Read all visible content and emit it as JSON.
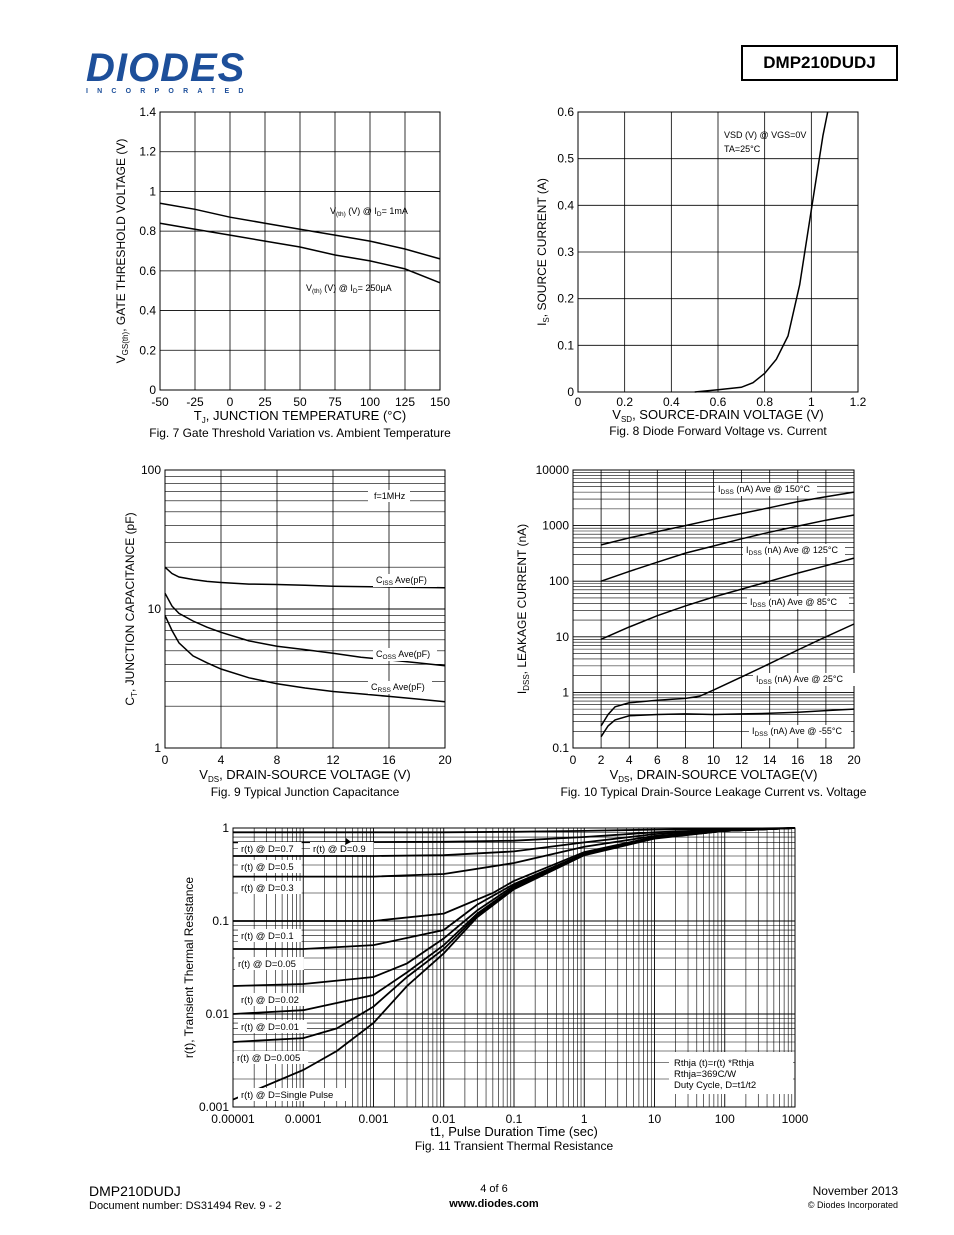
{
  "header": {
    "logo_text": "DIODES",
    "logo_subtext": "INCORPORATED",
    "part_number": "DMP210DUDJ"
  },
  "footer": {
    "part": "DMP210DUDJ",
    "doc": "Document number: DS31494 Rev. 9 - 2",
    "page": "4 of 6",
    "site": "www.diodes.com",
    "date": "November 2013",
    "copyright": "© Diodes Incorporated"
  },
  "chart_data": [
    {
      "id": "fig7",
      "type": "line",
      "caption": "Fig. 7 Gate Threshold Variation vs. Ambient Temperature",
      "xlabel": "T_J, JUNCTION TEMPERATURE (°C)",
      "ylabel": "V_GS(th), GATE THRESHOLD VOLTAGE (V)",
      "xlim": [
        -50,
        150
      ],
      "ylim": [
        0,
        1.4
      ],
      "xticks": [
        "-50",
        "-25",
        "0",
        "25",
        "50",
        "75",
        "100",
        "125",
        "150"
      ],
      "yticks": [
        "0",
        "0.2",
        "0.4",
        "0.6",
        "0.8",
        "1",
        "1.2",
        "1.4"
      ],
      "series": [
        {
          "name": "V(th) (V) @ ID= 1mA",
          "x": [
            -50,
            -25,
            0,
            25,
            50,
            75,
            100,
            125,
            150
          ],
          "y": [
            0.94,
            0.91,
            0.87,
            0.84,
            0.81,
            0.78,
            0.75,
            0.71,
            0.66
          ]
        },
        {
          "name": "V(th) (V) @ ID= 250µA",
          "x": [
            -50,
            -25,
            0,
            25,
            50,
            75,
            100,
            125,
            150
          ],
          "y": [
            0.84,
            0.81,
            0.78,
            0.75,
            0.72,
            0.68,
            0.65,
            0.61,
            0.54
          ]
        }
      ]
    },
    {
      "id": "fig8",
      "type": "line",
      "caption": "Fig. 8 Diode Forward Voltage vs. Current",
      "xlabel": "V_SD, SOURCE-DRAIN VOLTAGE (V)",
      "ylabel": "I_S, SOURCE CURRENT (A)",
      "xlim": [
        0,
        1.2
      ],
      "ylim": [
        0,
        0.6
      ],
      "xticks": [
        "0",
        "0.2",
        "0.4",
        "0.6",
        "0.8",
        "1",
        "1.2"
      ],
      "yticks": [
        "0",
        "0.1",
        "0.2",
        "0.3",
        "0.4",
        "0.5",
        "0.6"
      ],
      "annotation": [
        "VSD (V) @ VGS=0V",
        "TA=25°C"
      ],
      "series": [
        {
          "name": "VSD (V) @ VGS=0V",
          "x": [
            0.5,
            0.6,
            0.7,
            0.75,
            0.8,
            0.85,
            0.9,
            0.95,
            1.0,
            1.05,
            1.07
          ],
          "y": [
            0.0,
            0.005,
            0.01,
            0.02,
            0.04,
            0.07,
            0.12,
            0.23,
            0.39,
            0.55,
            0.6
          ]
        }
      ]
    },
    {
      "id": "fig9",
      "type": "line",
      "caption": "Fig. 9 Typical Junction Capacitance",
      "xlabel": "V_DS, DRAIN-SOURCE VOLTAGE (V)",
      "ylabel": "C_T, JUNCTION CAPACITANCE (pF)",
      "xlim": [
        0,
        20
      ],
      "ylim": [
        1,
        100
      ],
      "yscale": "log",
      "xticks": [
        "0",
        "4",
        "8",
        "12",
        "16",
        "20"
      ],
      "yticks": [
        "1",
        "10",
        "100"
      ],
      "annotation": "f=1MHz",
      "series": [
        {
          "name": "CISS Ave(pF)",
          "x": [
            0,
            0.5,
            1,
            2,
            3,
            4,
            6,
            8,
            10,
            12,
            14,
            16,
            18,
            20
          ],
          "y": [
            20,
            18,
            17,
            16.3,
            15.8,
            15.5,
            15.1,
            15,
            14.8,
            14.6,
            14.5,
            14.4,
            14.3,
            14.2
          ]
        },
        {
          "name": "COSS Ave(pF)",
          "x": [
            0,
            0.5,
            1,
            2,
            3,
            4,
            6,
            8,
            10,
            12,
            14,
            16,
            18,
            20
          ],
          "y": [
            13,
            10.5,
            9.3,
            8.2,
            7.4,
            6.8,
            5.9,
            5.4,
            5.1,
            4.8,
            4.5,
            4.3,
            4.1,
            3.9
          ]
        },
        {
          "name": "CRSS Ave(pF)",
          "x": [
            0,
            0.5,
            1,
            2,
            3,
            4,
            6,
            8,
            10,
            12,
            14,
            16,
            18,
            20
          ],
          "y": [
            9,
            7,
            5.7,
            4.6,
            4.1,
            3.7,
            3.2,
            2.9,
            2.7,
            2.55,
            2.45,
            2.35,
            2.25,
            2.15
          ]
        }
      ]
    },
    {
      "id": "fig10",
      "type": "line",
      "caption": "Fig. 10 Typical Drain-Source Leakage Current vs. Voltage",
      "xlabel": "V_DS, DRAIN-SOURCE VOLTAGE(V)",
      "ylabel": "I_DSS, LEAKAGE CURRENT (nA)",
      "xlim": [
        0,
        20
      ],
      "ylim": [
        0.1,
        10000
      ],
      "yscale": "log",
      "xticks": [
        "0",
        "2",
        "4",
        "6",
        "8",
        "10",
        "12",
        "14",
        "16",
        "18",
        "20"
      ],
      "yticks": [
        "0.1",
        "1",
        "10",
        "100",
        "1000",
        "10000"
      ],
      "series": [
        {
          "name": "IDSS (nA) Ave @ 150°C",
          "x": [
            2,
            4,
            6,
            8,
            10,
            12,
            14,
            16,
            18,
            20
          ],
          "y": [
            450,
            600,
            780,
            1000,
            1300,
            1650,
            2100,
            2700,
            3300,
            4000
          ]
        },
        {
          "name": "IDSS (nA) Ave @ 125°C",
          "x": [
            2,
            4,
            6,
            8,
            10,
            12,
            14,
            16,
            18,
            20
          ],
          "y": [
            100,
            150,
            220,
            320,
            430,
            580,
            760,
            980,
            1250,
            1550
          ]
        },
        {
          "name": "IDSS (nA) Ave @ 85°C",
          "x": [
            2,
            4,
            6,
            8,
            10,
            12,
            14,
            16,
            18,
            20
          ],
          "y": [
            9,
            15,
            24,
            36,
            52,
            72,
            100,
            140,
            190,
            260
          ]
        },
        {
          "name": "IDSS (nA) Ave @ 25°C",
          "x": [
            2,
            2.5,
            3,
            4,
            6,
            8,
            9,
            10,
            12,
            14,
            16,
            18,
            20
          ],
          "y": [
            0.25,
            0.4,
            0.55,
            0.65,
            0.72,
            0.78,
            0.85,
            1.1,
            1.9,
            3.3,
            5.8,
            10,
            17
          ]
        },
        {
          "name": "IDSS (nA) Ave @ -55°C",
          "x": [
            2,
            2.5,
            3,
            4,
            6,
            8,
            10,
            12,
            14,
            16,
            18,
            20
          ],
          "y": [
            0.16,
            0.25,
            0.32,
            0.38,
            0.4,
            0.41,
            0.4,
            0.41,
            0.42,
            0.44,
            0.47,
            0.5
          ]
        }
      ]
    },
    {
      "id": "fig11",
      "type": "line",
      "caption": "Fig. 11 Transient Thermal Resistance",
      "xlabel": "t1, Pulse Duration Time (sec)",
      "ylabel": "r(t), Transient Thermal Resistance",
      "xscale": "log",
      "yscale": "log",
      "xlim": [
        1e-05,
        1000
      ],
      "ylim": [
        0.001,
        1
      ],
      "xticks": [
        "0.00001",
        "0.0001",
        "0.001",
        "0.01",
        "0.1",
        "1",
        "10",
        "100",
        "1000"
      ],
      "yticks": [
        "0.001",
        "0.01",
        "0.1",
        "1"
      ],
      "note": [
        "Rthja (t)=r(t) *Rthja",
        "Rthja=369C/W",
        "Duty Cycle, D=t1/t2"
      ],
      "series": [
        {
          "name": "r(t) @ D=0.9",
          "x": [
            1e-05,
            0.01,
            0.1,
            1,
            10,
            100,
            1000
          ],
          "y": [
            0.9,
            0.9,
            0.91,
            0.93,
            0.96,
            0.98,
            1.0
          ]
        },
        {
          "name": "r(t) @ D=0.7",
          "x": [
            1e-05,
            0.01,
            0.1,
            1,
            10,
            100,
            1000
          ],
          "y": [
            0.7,
            0.71,
            0.73,
            0.8,
            0.9,
            0.96,
            1.0
          ]
        },
        {
          "name": "r(t) @ D=0.5",
          "x": [
            1e-05,
            0.001,
            0.01,
            0.1,
            1,
            10,
            100,
            1000
          ],
          "y": [
            0.5,
            0.5,
            0.51,
            0.56,
            0.7,
            0.86,
            0.95,
            1.0
          ]
        },
        {
          "name": "r(t) @ D=0.3",
          "x": [
            1e-05,
            0.001,
            0.01,
            0.1,
            1,
            10,
            100,
            1000
          ],
          "y": [
            0.3,
            0.3,
            0.32,
            0.42,
            0.63,
            0.82,
            0.94,
            1.0
          ]
        },
        {
          "name": "r(t) @ D=0.1",
          "x": [
            1e-05,
            0.001,
            0.01,
            0.05,
            0.1,
            1,
            10,
            100,
            1000
          ],
          "y": [
            0.1,
            0.1,
            0.12,
            0.2,
            0.27,
            0.55,
            0.8,
            0.93,
            1.0
          ]
        },
        {
          "name": "r(t) @ D=0.05",
          "x": [
            1e-05,
            0.0001,
            0.001,
            0.01,
            0.03,
            0.1,
            1,
            10,
            100,
            1000
          ],
          "y": [
            0.05,
            0.05,
            0.055,
            0.08,
            0.15,
            0.25,
            0.53,
            0.79,
            0.93,
            1.0
          ]
        },
        {
          "name": "r(t) @ D=0.02",
          "x": [
            1e-05,
            0.0001,
            0.001,
            0.003,
            0.01,
            0.03,
            0.1,
            1,
            10,
            100,
            1000
          ],
          "y": [
            0.02,
            0.021,
            0.025,
            0.035,
            0.065,
            0.13,
            0.24,
            0.52,
            0.78,
            0.93,
            1.0
          ]
        },
        {
          "name": "r(t) @ D=0.01",
          "x": [
            1e-05,
            0.0001,
            0.001,
            0.003,
            0.01,
            0.03,
            0.1,
            1,
            10,
            100,
            1000
          ],
          "y": [
            0.01,
            0.011,
            0.016,
            0.028,
            0.055,
            0.12,
            0.23,
            0.52,
            0.78,
            0.93,
            1.0
          ]
        },
        {
          "name": "r(t) @ D=0.005",
          "x": [
            1e-05,
            0.0001,
            0.0003,
            0.001,
            0.003,
            0.01,
            0.03,
            0.1,
            1,
            10,
            100,
            1000
          ],
          "y": [
            0.005,
            0.0055,
            0.007,
            0.012,
            0.025,
            0.05,
            0.115,
            0.23,
            0.52,
            0.78,
            0.93,
            1.0
          ]
        },
        {
          "name": "r(t) @ D=Single Pulse",
          "x": [
            1e-05,
            0.0001,
            0.0003,
            0.001,
            0.003,
            0.01,
            0.03,
            0.1,
            1,
            10,
            100,
            1000
          ],
          "y": [
            0.0012,
            0.0025,
            0.004,
            0.008,
            0.02,
            0.045,
            0.11,
            0.22,
            0.51,
            0.77,
            0.93,
            1.0
          ]
        }
      ]
    }
  ]
}
